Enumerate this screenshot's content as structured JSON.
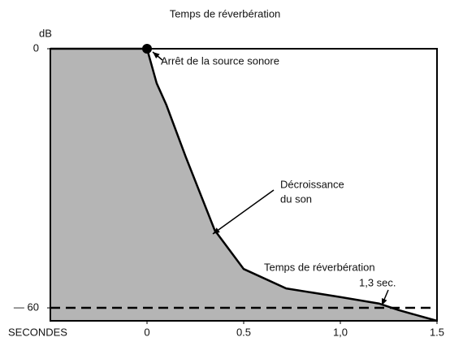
{
  "chart_data": {
    "type": "area",
    "title": "Temps de réverbération",
    "y_label": "dB",
    "x_label": "SECONDES",
    "x": [
      -0.5,
      0,
      0.05,
      0.1,
      0.2,
      0.35,
      0.5,
      0.72,
      1.0,
      1.2,
      1.3,
      1.5
    ],
    "series": [
      {
        "name": "Décroissance du son",
        "color": "#b5b5b5",
        "values": [
          0,
          0,
          -8,
          -13,
          -25,
          -42,
          -51,
          -55.5,
          -57.5,
          -59,
          -60.5,
          -63
        ]
      }
    ],
    "xlim": [
      -0.5,
      1.5
    ],
    "xticks": [
      0,
      0.5,
      {
        "value": 1,
        "label": "1,0"
      },
      1.5
    ],
    "ylim": [
      -63,
      0
    ],
    "yticks": [
      0,
      {
        "value": -60,
        "label": "— 60"
      }
    ],
    "reference_line": -60,
    "annotations": [
      "Arrêt de la source sonore",
      "Décroissance",
      "du son",
      "Temps de réverbération",
      "1,3 sec."
    ],
    "grid": false
  }
}
